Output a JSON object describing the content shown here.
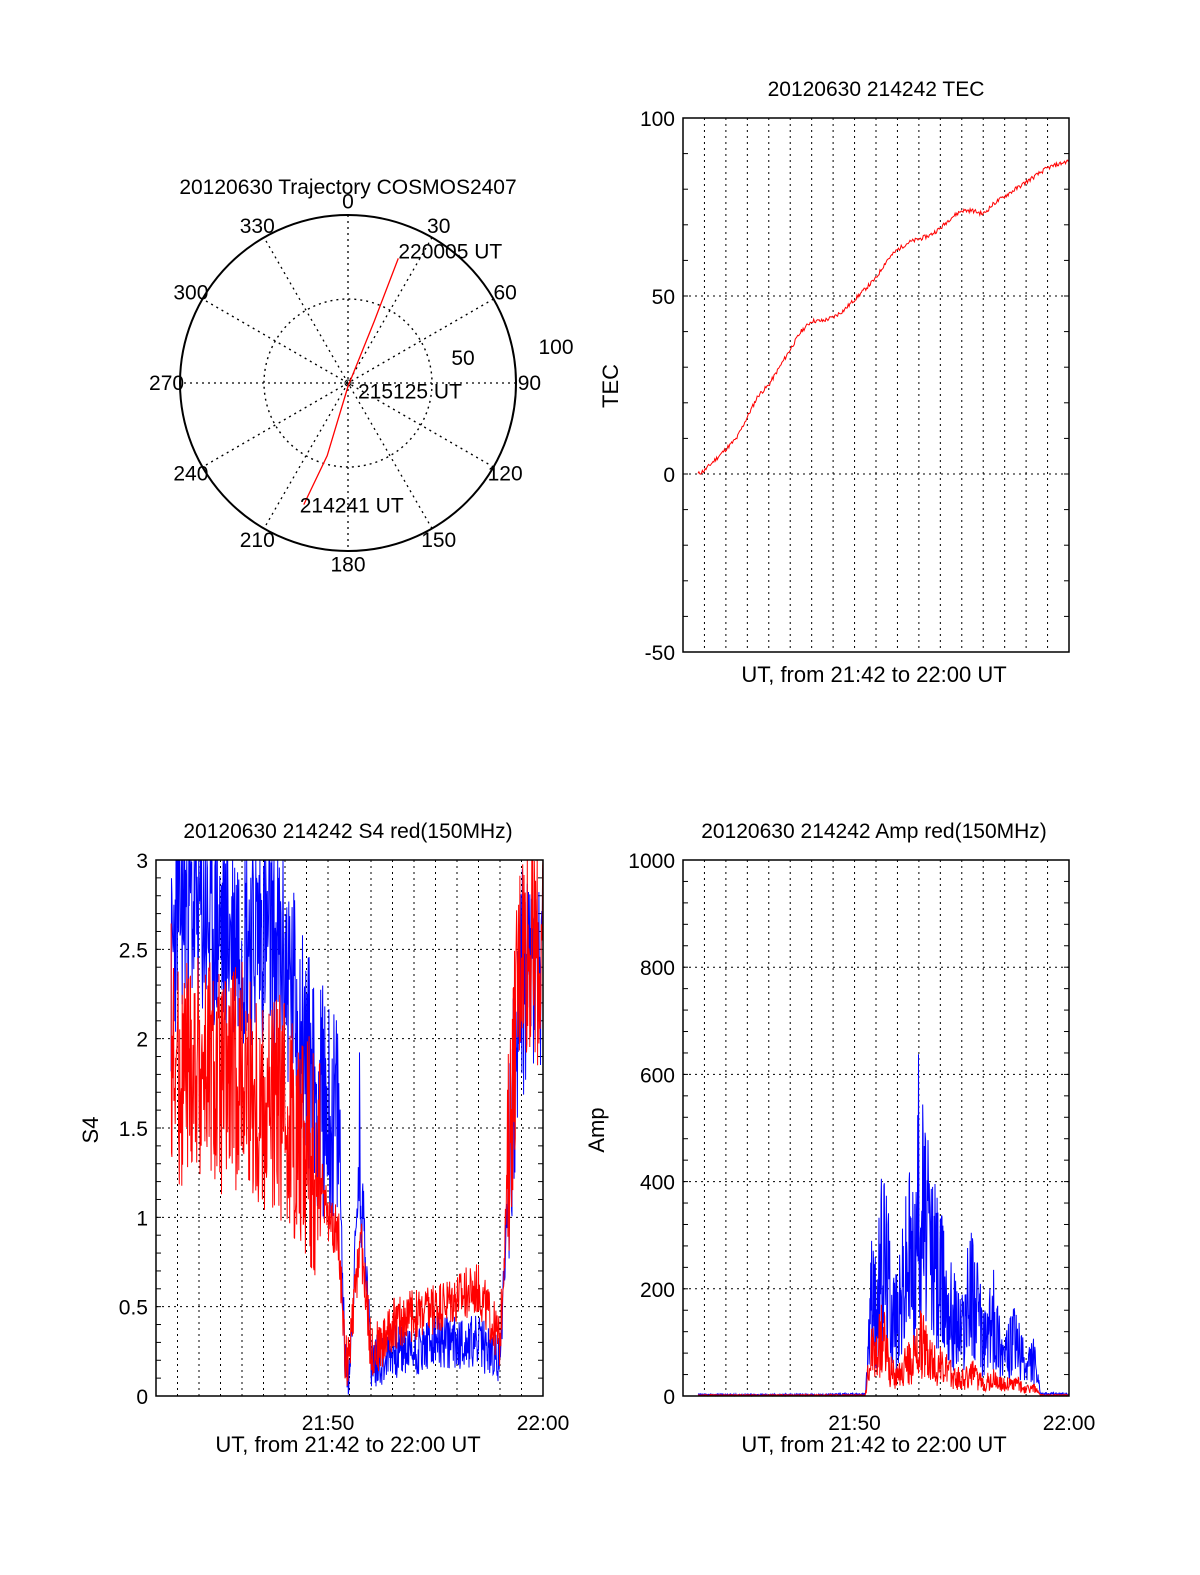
{
  "colors": {
    "red": "#ff0000",
    "blue": "#0000ff",
    "axis": "#000000",
    "grid": "#000000"
  },
  "chart_data": [
    {
      "id": "trajectory",
      "type": "scatter",
      "subtype": "polar",
      "title": "20120630 Trajectory COSMOS2407",
      "azimuth_labels": [
        "0",
        "30",
        "60",
        "90",
        "120",
        "150",
        "180",
        "210",
        "240",
        "270",
        "300",
        "330"
      ],
      "radius_labels": [
        "50",
        "100"
      ],
      "r_range": [
        0,
        100
      ],
      "grid": true,
      "series": [
        {
          "color": "#ff0000",
          "points": [
            {
              "az": 200,
              "r": 77
            },
            {
              "az": 196,
              "r": 45
            },
            {
              "az": 180,
              "r": 2
            },
            {
              "az": 23,
              "r": 40
            },
            {
              "az": 22,
              "r": 80
            }
          ]
        }
      ],
      "annotations": [
        {
          "text": "214241 UT",
          "az": 200,
          "r": 77
        },
        {
          "text": "215125 UT",
          "az": 180,
          "r": 2
        },
        {
          "text": "220005 UT",
          "az": 22,
          "r": 80
        }
      ]
    },
    {
      "id": "tec",
      "type": "line",
      "title": "20120630 214242 TEC",
      "xlabel": "UT, from 21:42 to 22:00 UT",
      "ylabel": "TEC",
      "xlim": [
        "21:42",
        "22:00"
      ],
      "ylim": [
        -50,
        100
      ],
      "yticks": [
        "-50",
        "0",
        "50",
        "100"
      ],
      "xticks": [],
      "grid": true,
      "series": [
        {
          "color": "#ff0000",
          "x": [
            "21:42:42",
            "21:43:00",
            "21:43:30",
            "21:44:00",
            "21:44:30",
            "21:45:00",
            "21:45:30",
            "21:46:00",
            "21:46:30",
            "21:47:00",
            "21:47:30",
            "21:48:00",
            "21:48:30",
            "21:49:00",
            "21:49:30",
            "21:50:00",
            "21:50:30",
            "21:51:00",
            "21:51:30",
            "21:52:00",
            "21:52:30",
            "21:53:00",
            "21:53:30",
            "21:54:00",
            "21:54:30",
            "21:55:00",
            "21:55:30",
            "21:56:00",
            "21:56:30",
            "21:57:00",
            "21:57:30",
            "21:58:00",
            "21:58:30",
            "21:59:00",
            "21:59:30",
            "22:00:00"
          ],
          "values": [
            0,
            1,
            4,
            7,
            10,
            16,
            22,
            25,
            30,
            35,
            40,
            43,
            43,
            44,
            46,
            49,
            52,
            55,
            60,
            63,
            65,
            66,
            67,
            69,
            72,
            74,
            74,
            73,
            76,
            78,
            80,
            82,
            84,
            86,
            87,
            88
          ]
        }
      ]
    },
    {
      "id": "s4",
      "type": "line",
      "title": "20120630 214242 S4 red(150MHz)",
      "xlabel": "UT, from 21:42 to 22:00 UT",
      "ylabel": "S4",
      "xlim": [
        "21:42",
        "22:00"
      ],
      "ylim": [
        0,
        3
      ],
      "yticks": [
        "0",
        "0.5",
        "1",
        "1.5",
        "2",
        "2.5",
        "3"
      ],
      "xticks": [
        "21:50",
        "22:00"
      ],
      "grid": true,
      "series": [
        {
          "color": "#0000ff",
          "x": [
            "21:42:42",
            "21:43:00",
            "21:44:00",
            "21:45:00",
            "21:46:00",
            "21:47:00",
            "21:48:00",
            "21:48:30",
            "21:49:00",
            "21:49:30",
            "21:50:00",
            "21:50:30",
            "21:50:48",
            "21:51:00",
            "21:51:30",
            "21:52:00",
            "21:52:30",
            "21:53:00",
            "21:54:00",
            "21:55:00",
            "21:56:00",
            "21:57:00",
            "21:58:00",
            "21:58:30",
            "21:59:00",
            "21:59:30",
            "22:00:00"
          ],
          "values": [
            2.3,
            2.8,
            2.7,
            2.6,
            2.6,
            2.6,
            2.4,
            2.2,
            1.9,
            1.7,
            1.6,
            1.5,
            0.15,
            0.15,
            1.4,
            0.2,
            0.2,
            0.25,
            0.25,
            0.3,
            0.3,
            0.3,
            0.2,
            1.5,
            2.3,
            2.4,
            2.3
          ]
        },
        {
          "color": "#ff0000",
          "x": [
            "21:42:42",
            "21:43:00",
            "21:44:00",
            "21:45:00",
            "21:46:00",
            "21:47:00",
            "21:48:00",
            "21:48:30",
            "21:49:00",
            "21:49:30",
            "21:50:00",
            "21:50:30",
            "21:50:48",
            "21:51:00",
            "21:51:30",
            "21:52:00",
            "21:52:30",
            "21:53:00",
            "21:54:00",
            "21:55:00",
            "21:56:00",
            "21:57:00",
            "21:58:00",
            "21:58:30",
            "21:59:00",
            "21:59:30",
            "22:00:00"
          ],
          "values": [
            2.0,
            1.8,
            1.9,
            1.7,
            1.8,
            1.6,
            1.6,
            1.5,
            1.4,
            1.3,
            1.0,
            0.9,
            0.2,
            0.2,
            0.9,
            0.25,
            0.3,
            0.4,
            0.45,
            0.5,
            0.55,
            0.6,
            0.3,
            1.6,
            2.6,
            2.5,
            2.4
          ]
        }
      ]
    },
    {
      "id": "amp",
      "type": "line",
      "title": "20120630 214242 Amp red(150MHz)",
      "xlabel": "UT, from 21:42 to 22:00 UT",
      "ylabel": "Amp",
      "xlim": [
        "21:42",
        "22:00"
      ],
      "ylim": [
        0,
        1000
      ],
      "yticks": [
        "0",
        "200",
        "400",
        "600",
        "800",
        "1000"
      ],
      "xticks": [
        "21:50",
        "22:00"
      ],
      "grid": true,
      "series": [
        {
          "color": "#0000ff",
          "x": [
            "21:42:42",
            "21:45:00",
            "21:48:00",
            "21:50:30",
            "21:50:50",
            "21:51:00",
            "21:51:20",
            "21:51:40",
            "21:52:00",
            "21:52:30",
            "21:52:50",
            "21:53:00",
            "21:53:20",
            "21:53:40",
            "21:54:00",
            "21:54:30",
            "21:55:00",
            "21:55:30",
            "21:56:00",
            "21:56:30",
            "21:57:00",
            "21:57:30",
            "21:58:00",
            "21:58:20",
            "21:58:40",
            "22:00:00"
          ],
          "values": [
            3,
            3,
            3,
            4,
            250,
            180,
            350,
            240,
            170,
            330,
            300,
            510,
            380,
            320,
            270,
            200,
            150,
            260,
            120,
            180,
            90,
            130,
            60,
            90,
            5,
            4
          ]
        },
        {
          "color": "#ff0000",
          "x": [
            "21:42:42",
            "21:45:00",
            "21:48:00",
            "21:50:30",
            "21:50:50",
            "21:51:00",
            "21:51:20",
            "21:51:40",
            "21:52:00",
            "21:52:30",
            "21:52:50",
            "21:53:00",
            "21:53:20",
            "21:53:40",
            "21:54:00",
            "21:54:30",
            "21:55:00",
            "21:55:30",
            "21:56:00",
            "21:56:30",
            "21:57:00",
            "21:57:30",
            "21:58:00",
            "21:58:20",
            "21:58:40",
            "22:00:00"
          ],
          "values": [
            2,
            2,
            2,
            2,
            120,
            90,
            150,
            60,
            40,
            80,
            90,
            130,
            110,
            80,
            70,
            50,
            40,
            50,
            30,
            40,
            25,
            30,
            15,
            20,
            2,
            2
          ]
        }
      ]
    }
  ]
}
